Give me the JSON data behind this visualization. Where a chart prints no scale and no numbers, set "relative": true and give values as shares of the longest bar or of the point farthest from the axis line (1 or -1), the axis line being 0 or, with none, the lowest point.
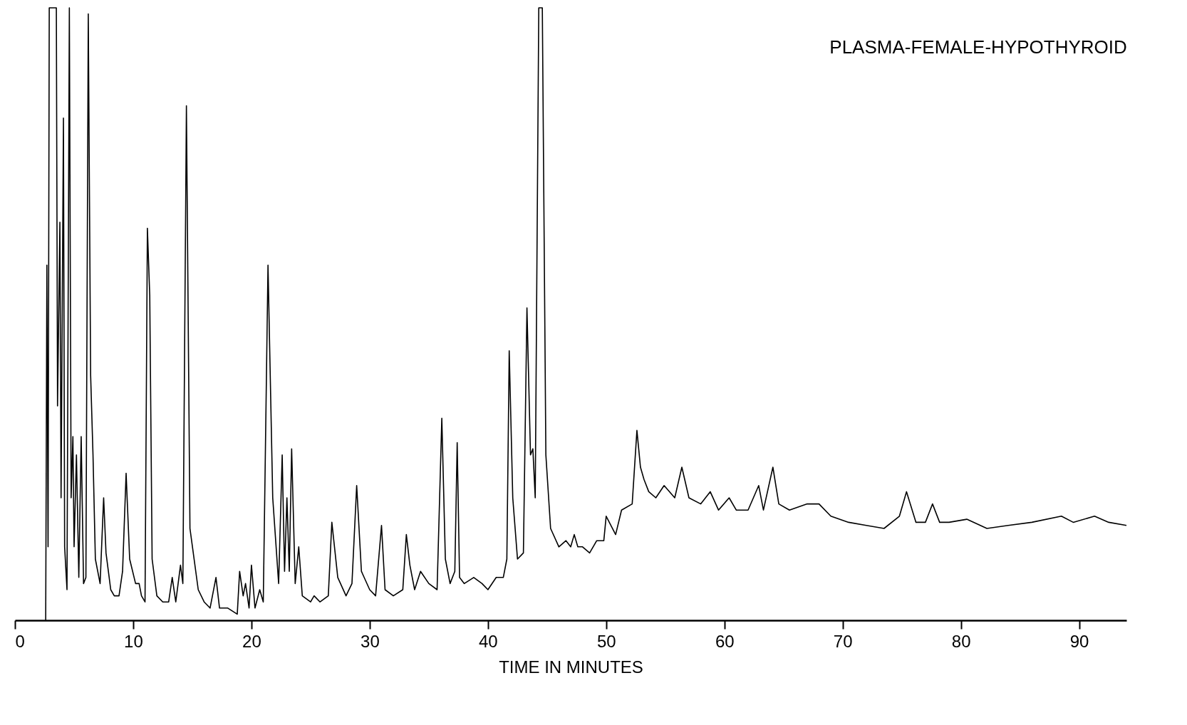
{
  "chart_data": {
    "type": "line",
    "title": "PLASMA-FEMALE-HYPOTHYROID",
    "xlabel": "TIME IN MINUTES",
    "relative": true,
    "xlim": [
      0,
      94
    ],
    "xticks": [
      0,
      10,
      20,
      30,
      40,
      50,
      60,
      70,
      80,
      90
    ],
    "grid": false,
    "marker": "none",
    "line_style": "solid",
    "x": [
      2.6,
      2.7,
      2.8,
      2.9,
      3.5,
      3.6,
      3.8,
      3.9,
      4.1,
      4.2,
      4.4,
      4.6,
      4.75,
      4.9,
      5.0,
      5.2,
      5.4,
      5.6,
      5.8,
      6.0,
      6.2,
      6.4,
      6.6,
      6.8,
      7.2,
      7.5,
      7.7,
      7.9,
      8.1,
      8.4,
      8.8,
      9.1,
      9.4,
      9.7,
      10.2,
      10.5,
      10.7,
      11.0,
      11.2,
      11.4,
      11.6,
      12.0,
      12.5,
      13.0,
      13.3,
      13.6,
      14.0,
      14.2,
      14.5,
      14.8,
      15.5,
      16.0,
      16.5,
      17.0,
      17.3,
      18.0,
      18.8,
      19.0,
      19.3,
      19.5,
      19.8,
      20.0,
      20.3,
      20.7,
      21.0,
      21.4,
      21.8,
      22.3,
      22.6,
      22.8,
      23.0,
      23.2,
      23.4,
      23.7,
      24.0,
      24.3,
      25.0,
      25.3,
      25.8,
      26.5,
      26.8,
      27.3,
      28.0,
      28.5,
      28.9,
      29.3,
      30.0,
      30.5,
      31.0,
      31.3,
      32.0,
      32.8,
      33.1,
      33.4,
      33.8,
      34.3,
      35.0,
      35.7,
      36.1,
      36.4,
      36.8,
      37.2,
      37.4,
      37.6,
      38.0,
      38.8,
      39.5,
      40.0,
      40.7,
      41.3,
      41.6,
      41.8,
      42.1,
      42.5,
      43.0,
      43.3,
      43.6,
      43.8,
      44.0,
      44.3,
      44.6,
      44.9,
      45.3,
      46.0,
      46.6,
      47.0,
      47.3,
      47.6,
      48.0,
      48.6,
      49.2,
      49.8,
      50.0,
      50.8,
      51.3,
      52.2,
      52.6,
      52.9,
      53.2,
      53.6,
      54.2,
      54.9,
      55.8,
      56.4,
      57.0,
      58.0,
      58.8,
      59.5,
      60.4,
      61.0,
      62.0,
      62.9,
      63.3,
      64.1,
      64.6,
      65.5,
      67.0,
      68.0,
      69.0,
      70.5,
      72.0,
      73.5,
      74.8,
      75.4,
      76.2,
      77.0,
      77.6,
      78.2,
      79.0,
      80.5,
      82.2,
      84.0,
      86.0,
      88.5,
      89.5,
      91.3,
      92.5,
      94.0
    ],
    "values": [
      0,
      0.58,
      0.12,
      1,
      1,
      0.35,
      0.65,
      0.2,
      0.82,
      0.12,
      0.05,
      1,
      0.2,
      0.3,
      0.12,
      0.27,
      0.07,
      0.3,
      0.06,
      0.07,
      0.99,
      0.4,
      0.27,
      0.1,
      0.06,
      0.2,
      0.11,
      0.08,
      0.05,
      0.04,
      0.04,
      0.08,
      0.24,
      0.1,
      0.06,
      0.06,
      0.04,
      0.03,
      0.64,
      0.53,
      0.1,
      0.04,
      0.03,
      0.03,
      0.07,
      0.03,
      0.09,
      0.06,
      0.84,
      0.15,
      0.05,
      0.03,
      0.02,
      0.07,
      0.02,
      0.02,
      0.01,
      0.08,
      0.04,
      0.06,
      0.02,
      0.09,
      0.02,
      0.05,
      0.03,
      0.58,
      0.2,
      0.06,
      0.27,
      0.08,
      0.2,
      0.08,
      0.28,
      0.06,
      0.12,
      0.04,
      0.03,
      0.04,
      0.03,
      0.04,
      0.16,
      0.07,
      0.04,
      0.06,
      0.22,
      0.08,
      0.05,
      0.04,
      0.155,
      0.05,
      0.04,
      0.05,
      0.14,
      0.09,
      0.05,
      0.08,
      0.06,
      0.05,
      0.33,
      0.1,
      0.06,
      0.08,
      0.29,
      0.07,
      0.06,
      0.07,
      0.06,
      0.05,
      0.07,
      0.07,
      0.1,
      0.44,
      0.2,
      0.1,
      0.11,
      0.51,
      0.27,
      0.28,
      0.2,
      1,
      1,
      0.27,
      0.15,
      0.12,
      0.13,
      0.12,
      0.14,
      0.12,
      0.12,
      0.11,
      0.13,
      0.13,
      0.17,
      0.14,
      0.18,
      0.19,
      0.31,
      0.25,
      0.23,
      0.21,
      0.2,
      0.22,
      0.2,
      0.25,
      0.2,
      0.19,
      0.21,
      0.18,
      0.2,
      0.18,
      0.18,
      0.22,
      0.18,
      0.25,
      0.19,
      0.18,
      0.19,
      0.19,
      0.17,
      0.16,
      0.155,
      0.15,
      0.17,
      0.21,
      0.16,
      0.16,
      0.19,
      0.16,
      0.16,
      0.165,
      0.15,
      0.155,
      0.16,
      0.17,
      0.16,
      0.17,
      0.16,
      0.155
    ],
    "color": "#000000"
  }
}
